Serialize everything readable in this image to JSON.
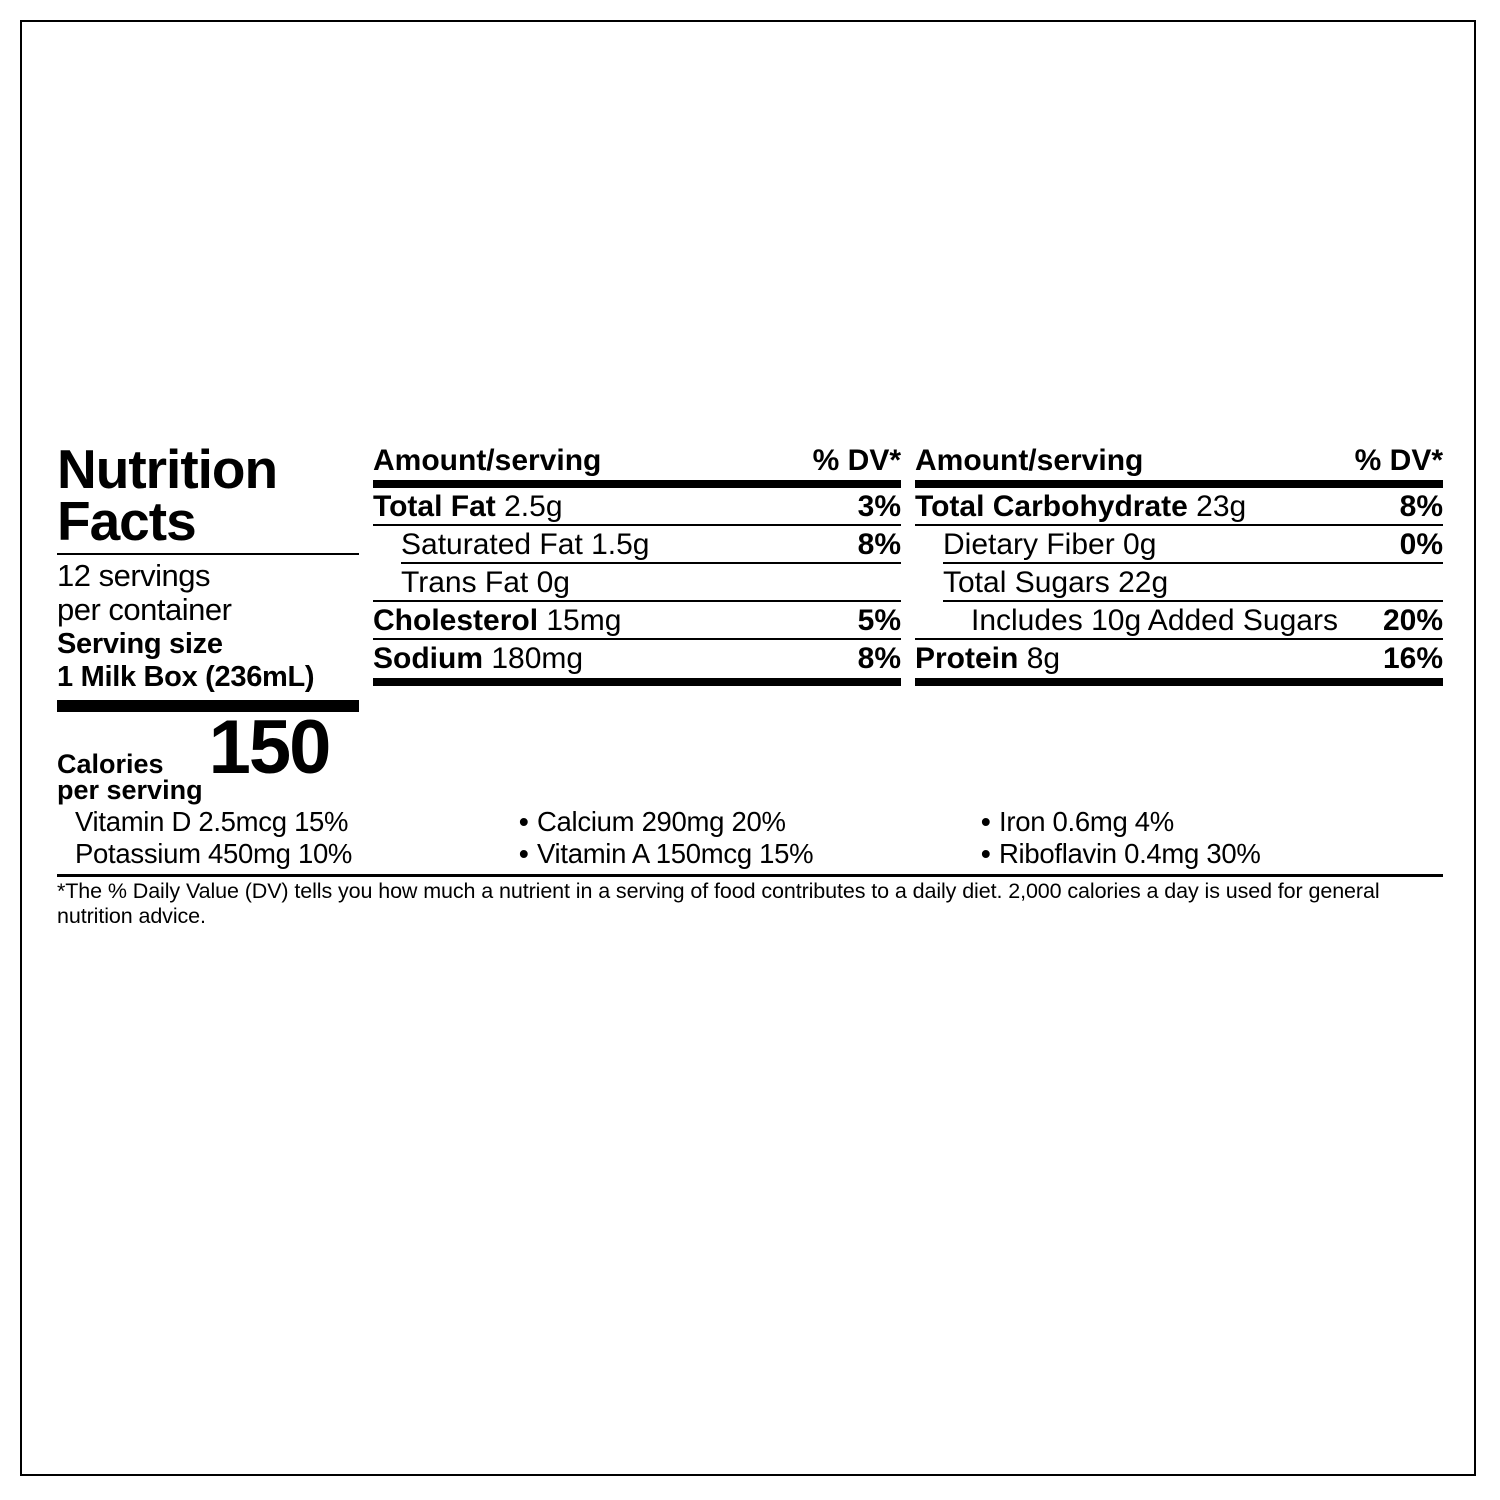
{
  "colors": {
    "ink": "#000000",
    "paper": "#ffffff"
  },
  "typography": {
    "family": "Helvetica Neue, Helvetica, Arial, sans-serif",
    "title_pt": 55,
    "body_pt": 30,
    "calories_pt": 76,
    "foot_pt": 21.5
  },
  "title_l1": "Nutrition",
  "title_l2": "Facts",
  "servings_l1": "12 servings",
  "servings_l2": "per container",
  "serving_size_l1": "Serving size",
  "serving_size_l2": "1 Milk Box (236mL)",
  "calories_label_l1": "Calories",
  "calories_label_l2": "per serving",
  "calories_value": "150",
  "hdr_amount": "Amount/serving",
  "hdr_dv": "% DV*",
  "col1": [
    {
      "bold": "Total Fat ",
      "rest": "2.5g",
      "dv": "3%",
      "rule": "none",
      "indent": 0
    },
    {
      "bold": "",
      "rest": "Saturated Fat 1.5g",
      "dv": "8%",
      "rule": "full",
      "indent": 1
    },
    {
      "bold": "",
      "rest": "Trans Fat 0g",
      "dv": "",
      "rule": "short",
      "indent": 1
    },
    {
      "bold": "Cholesterol ",
      "rest": "15mg",
      "dv": "5%",
      "rule": "full",
      "indent": 0
    },
    {
      "bold": "Sodium ",
      "rest": "180mg",
      "dv": "8%",
      "rule": "full",
      "indent": 0
    }
  ],
  "col2": [
    {
      "bold": "Total Carbohydrate ",
      "rest": "23g",
      "dv": "8%",
      "rule": "none",
      "indent": 0
    },
    {
      "bold": "",
      "rest": "Dietary Fiber 0g",
      "dv": "0%",
      "rule": "full",
      "indent": 1
    },
    {
      "bold": "",
      "rest": "Total Sugars 22g",
      "dv": "",
      "rule": "short",
      "indent": 1
    },
    {
      "bold": "",
      "rest": "Includes 10g Added Sugars",
      "dv": "20%",
      "rule": "short",
      "indent": 2
    },
    {
      "bold": "Protein ",
      "rest": "8g",
      "dv": "16%",
      "rule": "full",
      "indent": 0
    }
  ],
  "vitamins": [
    [
      {
        "t": "Vitamin D 2.5mcg 15%",
        "b": false
      },
      {
        "t": "Potassium 450mg 10%",
        "b": false
      }
    ],
    [
      {
        "t": "Calcium 290mg 20%",
        "b": true
      },
      {
        "t": "Vitamin A 150mcg 15%",
        "b": true
      }
    ],
    [
      {
        "t": "Iron 0.6mg 4%",
        "b": true
      },
      {
        "t": "Riboflavin 0.4mg 30%",
        "b": true
      }
    ]
  ],
  "footnote": "*The % Daily Value (DV) tells you how much a nutrient in a serving of food contributes to a daily diet. 2,000 calories a day is used for general nutrition advice."
}
